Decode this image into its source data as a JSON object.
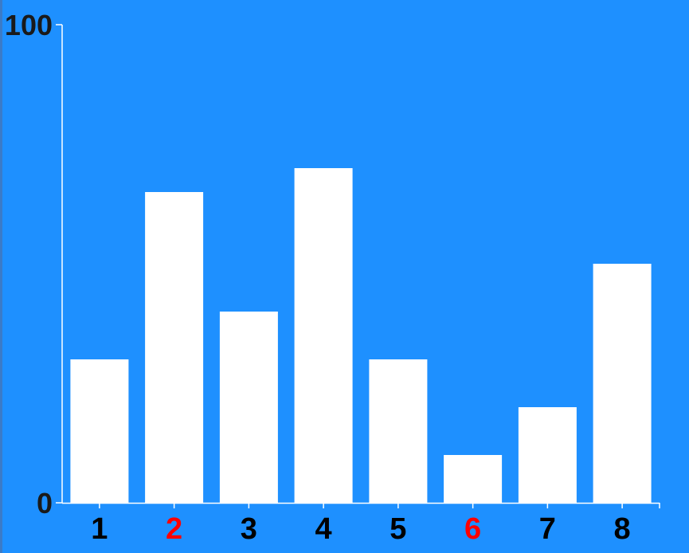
{
  "colors": {
    "background": "#1E90FF",
    "bar": "#FFFFFF",
    "axis": "#FFFFFF",
    "label_default": "#000000",
    "label_highlight": "#FF0000"
  },
  "chart_data": {
    "type": "bar",
    "title": "",
    "xlabel": "",
    "ylabel": "",
    "categories": [
      "1",
      "2",
      "3",
      "4",
      "5",
      "6",
      "7",
      "8"
    ],
    "values": [
      30,
      65,
      40,
      70,
      30,
      10,
      20,
      50
    ],
    "ylim": [
      0,
      100
    ],
    "y_ticks": [
      "0",
      "100"
    ],
    "highlighted_categories": [
      "2",
      "6"
    ],
    "grid": false,
    "legend": "none"
  }
}
